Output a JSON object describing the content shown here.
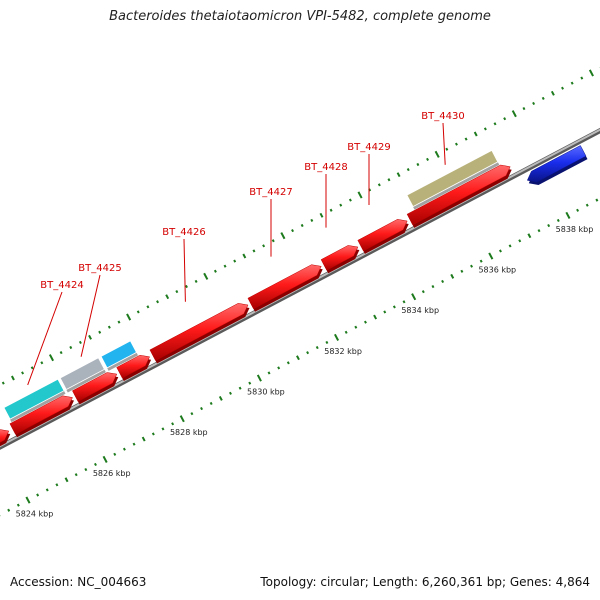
{
  "title": "Bacteroides thetaiotaomicron VPI-5482, complete genome",
  "footer": {
    "accession": "Accession: NC_004663",
    "summary": "Topology: circular; Length: 6,260,361 bp; Genes: 4,864"
  },
  "colors": {
    "forward_gene": "#ff1a1a",
    "reverse_gene": "#1a2eee",
    "gene_label": "#d40000",
    "backbone": "#8a8a8a",
    "tick": "#1d7a1d",
    "feature_cyan": "#22c8cc",
    "feature_gray": "#aab2bc",
    "feature_sky": "#22b4ee",
    "feature_khaki": "#b8b27a"
  },
  "scale": {
    "unit": "kbp",
    "ticks": [
      {
        "kbp": 5824,
        "label": "5824 kbp"
      },
      {
        "kbp": 5826,
        "label": "5826 kbp"
      },
      {
        "kbp": 5828,
        "label": "5828 kbp"
      },
      {
        "kbp": 5830,
        "label": "5830 kbp"
      },
      {
        "kbp": 5832,
        "label": "5832 kbp"
      },
      {
        "kbp": 5834,
        "label": "5834 kbp"
      },
      {
        "kbp": 5836,
        "label": "5836 kbp"
      },
      {
        "kbp": 5838,
        "label": "5838 kbp"
      }
    ]
  },
  "genes": [
    {
      "name": "",
      "start_kbp": 5822.75,
      "end_kbp": 5823.25,
      "strand": "+"
    },
    {
      "name": "",
      "start_kbp": 5823.3,
      "end_kbp": 5823.75,
      "strand": "+"
    },
    {
      "name": "",
      "start_kbp": 5823.8,
      "end_kbp": 5824.35,
      "strand": "+"
    },
    {
      "name": "BT_4424",
      "start_kbp": 5824.45,
      "end_kbp": 5826.0,
      "strand": "+"
    },
    {
      "name": "BT_4425",
      "start_kbp": 5826.07,
      "end_kbp": 5827.15,
      "strand": "+"
    },
    {
      "name": "",
      "start_kbp": 5827.22,
      "end_kbp": 5828.0,
      "strand": "+"
    },
    {
      "name": "BT_4426",
      "start_kbp": 5828.08,
      "end_kbp": 5830.55,
      "strand": "+"
    },
    {
      "name": "BT_4427",
      "start_kbp": 5830.62,
      "end_kbp": 5832.45,
      "strand": "+"
    },
    {
      "name": "BT_4428",
      "start_kbp": 5832.52,
      "end_kbp": 5833.4,
      "strand": "+"
    },
    {
      "name": "BT_4429",
      "start_kbp": 5833.47,
      "end_kbp": 5834.68,
      "strand": "+"
    },
    {
      "name": "BT_4430",
      "start_kbp": 5834.75,
      "end_kbp": 5837.35,
      "strand": "+"
    },
    {
      "name": "",
      "start_kbp": 5837.55,
      "end_kbp": 5839.0,
      "strand": "-"
    }
  ],
  "features": [
    {
      "start_kbp": 5824.5,
      "end_kbp": 5825.9,
      "color": "#22c8cc"
    },
    {
      "start_kbp": 5825.96,
      "end_kbp": 5826.95,
      "color": "#aab2bc"
    },
    {
      "start_kbp": 5827.02,
      "end_kbp": 5827.78,
      "color": "#22b4ee"
    },
    {
      "start_kbp": 5834.95,
      "end_kbp": 5837.15,
      "color": "#b8b27a"
    }
  ]
}
